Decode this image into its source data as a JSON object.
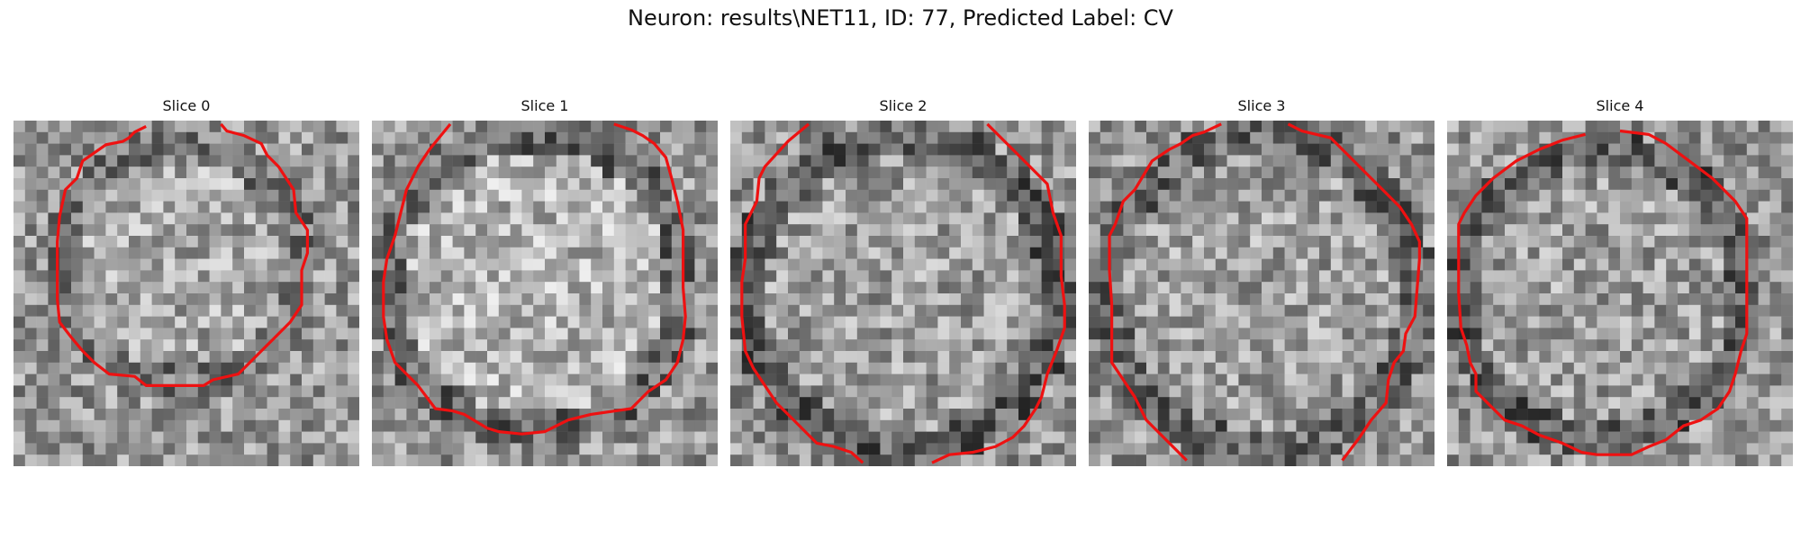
{
  "figure": {
    "title": "Neuron: results\\NET11, ID: 77, Predicted Label: CV"
  },
  "panels": [
    {
      "title": "Slice 0"
    },
    {
      "title": "Slice 1"
    },
    {
      "title": "Slice 2"
    },
    {
      "title": "Slice 3"
    },
    {
      "title": "Slice 4"
    }
  ],
  "colors": {
    "contour": "#ee1111",
    "background": "#ffffff"
  }
}
